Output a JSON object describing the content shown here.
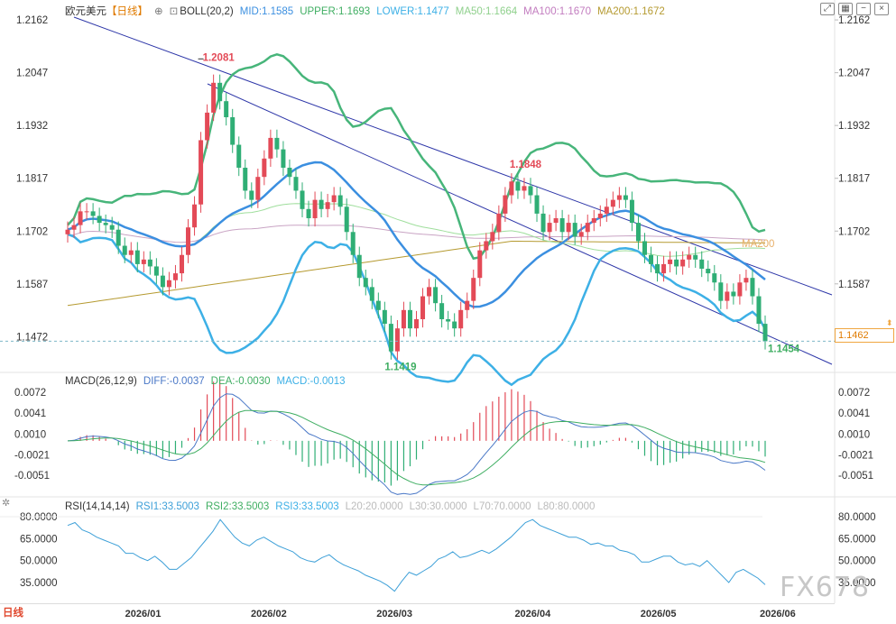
{
  "header": {
    "symbol": "欧元美元",
    "period": "【日线】",
    "indicator": "BOLL(20,2)",
    "mid": "MID:1.1585",
    "upper": "UPPER:1.1693",
    "lower": "LOWER:1.1477",
    "ma50": "MA50:1.1664",
    "ma100": "MA100:1.1670",
    "ma200": "MA200:1.1672"
  },
  "macd_header": {
    "name": "MACD(26,12,9)",
    "diff": "DIFF:-0.0037",
    "dea": "DEA:-0.0030",
    "macd": "MACD:-0.0013"
  },
  "rsi_header": {
    "name": "RSI(14,14,14)",
    "rsi1": "RSI1:33.5003",
    "rsi2": "RSI2:33.5003",
    "rsi3": "RSI3:33.5003",
    "l20": "L20:20.0000",
    "l30": "L30:30.0000",
    "l70": "L70:70.0000",
    "l80": "L80:80.0000"
  },
  "current_price": "1.1462",
  "period_button": "日线",
  "watermark": "FX678",
  "colors": {
    "up": "#e34a57",
    "down": "#2fae75",
    "boll_mid": "#3b8fe0",
    "boll_band": "#47b57a",
    "lower_band": "#3db0e6",
    "ma50": "#9fde9c",
    "ma100": "#c9a4c4",
    "ma200": "#b59a30",
    "trend": "#2d36a8",
    "diff": "#4a78c7",
    "dea": "#3fae62",
    "rsi": "#3ea0d8"
  },
  "chart_data": [
    {
      "type": "candlestick",
      "title": "欧元美元 日线",
      "x_ticks": [
        "2026/01",
        "2026/02",
        "2026/03",
        "2026/04",
        "2026/05",
        "2026/06"
      ],
      "y_ticks": [
        "1.2162",
        "1.2047",
        "1.1932",
        "1.1817",
        "1.1702",
        "1.1587",
        "1.1472"
      ],
      "ylim": [
        1.14,
        1.217
      ],
      "annotations": [
        {
          "label": "1.2081",
          "value": 1.2081,
          "kind": "high"
        },
        {
          "label": "1.1848",
          "value": 1.1848,
          "kind": "high"
        },
        {
          "label": "1.1419",
          "value": 1.1419,
          "kind": "low"
        },
        {
          "label": "1.1454",
          "value": 1.1454,
          "kind": "low"
        },
        {
          "label": "MA200",
          "kind": "line-label"
        }
      ],
      "close": [
        1.1705,
        1.1715,
        1.1745,
        1.1745,
        1.1735,
        1.172,
        1.1715,
        1.1705,
        1.167,
        1.165,
        1.166,
        1.163,
        1.164,
        1.1625,
        1.1605,
        1.158,
        1.1595,
        1.161,
        1.165,
        1.171,
        1.176,
        1.19,
        1.196,
        1.2025,
        1.1985,
        1.195,
        1.189,
        1.184,
        1.179,
        1.177,
        1.182,
        1.186,
        1.1905,
        1.188,
        1.184,
        1.182,
        1.179,
        1.175,
        1.173,
        1.177,
        1.175,
        1.1765,
        1.178,
        1.1755,
        1.17,
        1.165,
        1.16,
        1.158,
        1.155,
        1.153,
        1.15,
        1.144,
        1.149,
        1.153,
        1.149,
        1.151,
        1.156,
        1.158,
        1.1545,
        1.151,
        1.1505,
        1.149,
        1.153,
        1.155,
        1.16,
        1.166,
        1.168,
        1.17,
        1.174,
        1.178,
        1.181,
        1.179,
        1.18,
        1.178,
        1.174,
        1.17,
        1.172,
        1.173,
        1.17,
        1.172,
        1.169,
        1.17,
        1.172,
        1.173,
        1.174,
        1.1755,
        1.177,
        1.178,
        1.177,
        1.172,
        1.168,
        1.165,
        1.163,
        1.161,
        1.163,
        1.164,
        1.1625,
        1.164,
        1.165,
        1.164,
        1.162,
        1.161,
        1.159,
        1.155,
        1.157,
        1.156,
        1.159,
        1.16,
        1.156,
        1.15,
        1.1462
      ],
      "rsi": [
        74,
        76,
        71,
        69,
        66,
        64,
        62,
        60,
        55,
        55,
        52,
        50,
        53,
        49,
        44,
        44,
        48,
        52,
        58,
        64,
        70,
        78,
        72,
        66,
        62,
        60,
        64,
        66,
        63,
        60,
        58,
        56,
        52,
        50,
        49,
        52,
        54,
        50,
        47,
        45,
        43,
        40,
        38,
        36,
        33,
        29,
        36,
        42,
        40,
        43,
        46,
        51,
        53,
        56,
        52,
        53,
        55,
        57,
        55,
        58,
        62,
        66,
        71,
        76,
        78,
        74,
        72,
        70,
        68,
        66,
        66,
        64,
        61,
        62,
        60,
        60,
        57,
        56,
        54,
        49,
        49,
        51,
        53,
        53,
        49,
        47,
        48,
        46,
        50,
        45,
        40,
        35,
        42,
        44,
        41,
        38,
        33.5
      ]
    }
  ]
}
